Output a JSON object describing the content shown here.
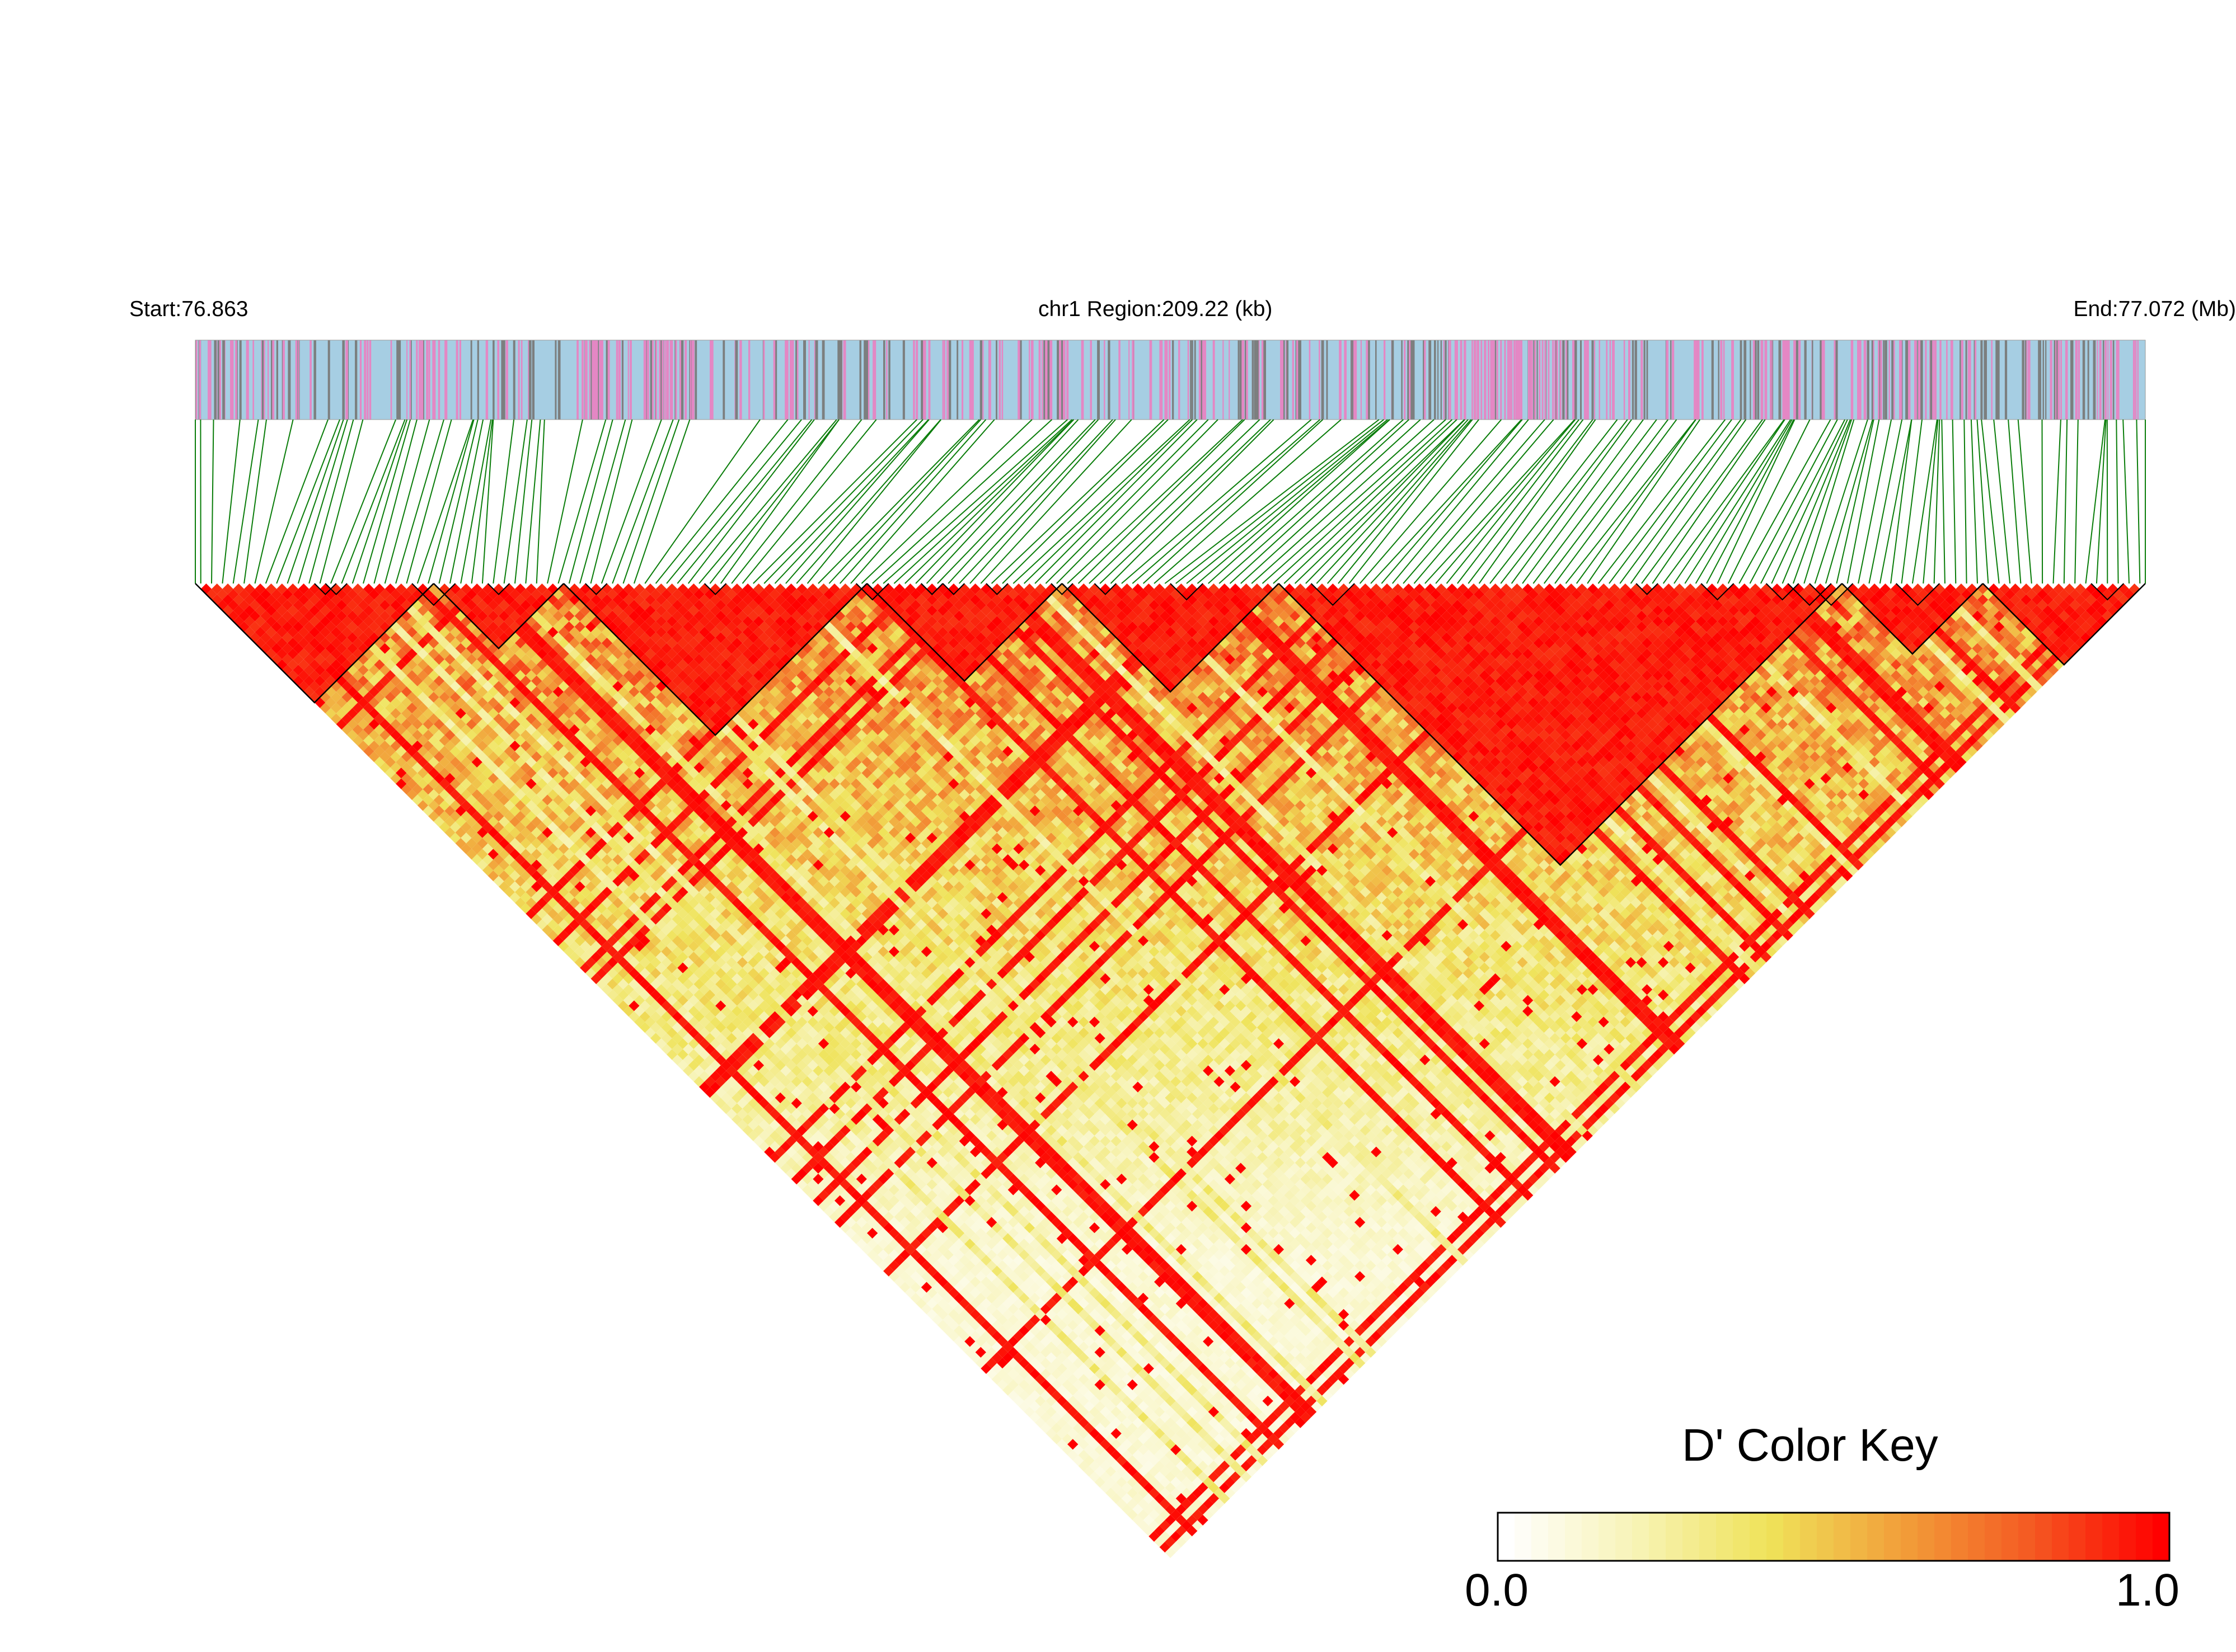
{
  "header": {
    "start_label": "Start:76.863",
    "region_label": "chr1 Region:209.22 (kb)",
    "end_label": "End:77.072 (Mb)"
  },
  "colors": {
    "track_base": "#a6cee3",
    "track_pink": "#e487c4",
    "track_gray": "#7c7f7f",
    "connector_lines": "#0a7d0a",
    "ld_high": "#ff0000",
    "ld_mid": "#e8e83c",
    "ld_low": "#ffffff",
    "block_outline": "#000000"
  },
  "chart_data": {
    "type": "heatmap",
    "variant": "LD triangle (pairwise D' between SNPs)",
    "chromosome": "chr1",
    "region_start_mb": 76.863,
    "region_end_mb": 77.072,
    "region_size_kb": 209.22,
    "value_range": [
      0.0,
      1.0
    ],
    "haplotype_blocks_d_prime_high": true,
    "legend": {
      "title": "D' Color Key",
      "min_label": "0.0",
      "max_label": "1.0",
      "stops": [
        "#ffffff",
        "#f7f3b5",
        "#efe35a",
        "#f2a03a",
        "#f45a22",
        "#ff0000"
      ],
      "placement": "bottom-right"
    }
  }
}
